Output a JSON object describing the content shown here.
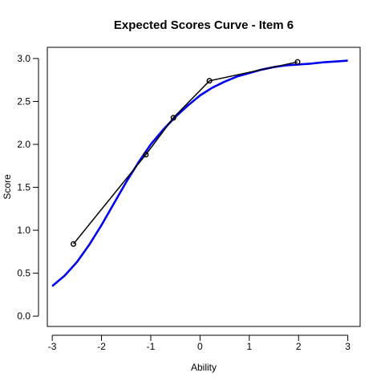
{
  "chart_data": {
    "type": "line",
    "title": "Expected Scores Curve - Item  6",
    "xlabel": "Ability",
    "ylabel": "Score",
    "xlim": [
      -3.1,
      3.25
    ],
    "ylim": [
      -0.12,
      3.13
    ],
    "x_ticks": [
      -3,
      -2,
      -1,
      0,
      1,
      2,
      3
    ],
    "y_ticks": [
      0.0,
      0.5,
      1.0,
      1.5,
      2.0,
      2.5,
      3.0
    ],
    "y_tick_labels": [
      "0.0",
      "0.5",
      "1.0",
      "1.5",
      "2.0",
      "2.5",
      "3.0"
    ],
    "grid": false,
    "legend": "none",
    "series": [
      {
        "style": "curve",
        "color": "#0000ee",
        "x": [
          -3.0,
          -2.75,
          -2.5,
          -2.25,
          -2.0,
          -1.75,
          -1.5,
          -1.25,
          -1.0,
          -0.75,
          -0.5,
          -0.25,
          0.0,
          0.25,
          0.5,
          0.75,
          1.0,
          1.25,
          1.5,
          1.75,
          2.0,
          2.25,
          2.5,
          2.75,
          3.0
        ],
        "y": [
          0.35,
          0.47,
          0.63,
          0.83,
          1.06,
          1.31,
          1.56,
          1.79,
          2.0,
          2.17,
          2.32,
          2.45,
          2.57,
          2.66,
          2.73,
          2.79,
          2.83,
          2.87,
          2.9,
          2.92,
          2.93,
          2.94,
          2.955,
          2.965,
          2.975
        ]
      },
      {
        "style": "line-points",
        "color": "#000000",
        "x": [
          -2.57,
          -1.1,
          -0.54,
          0.19,
          1.98
        ],
        "y": [
          0.84,
          1.88,
          2.31,
          2.74,
          2.96
        ]
      }
    ]
  }
}
